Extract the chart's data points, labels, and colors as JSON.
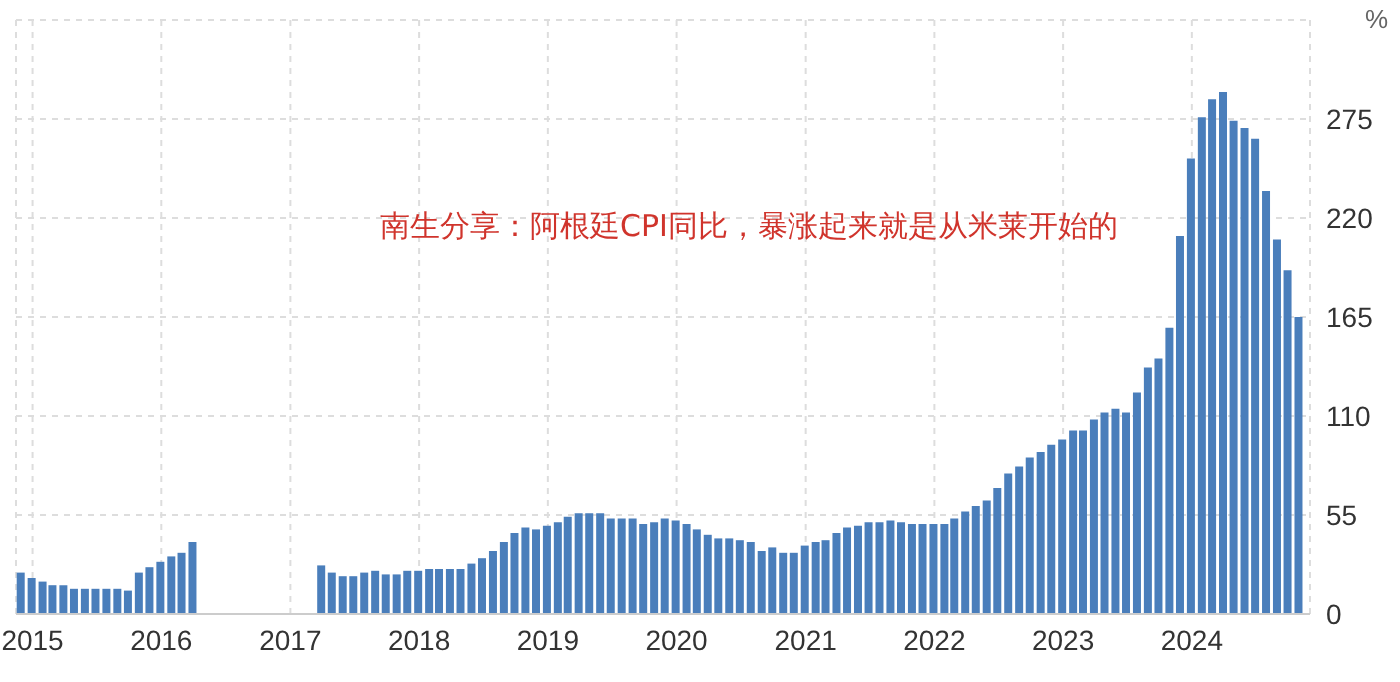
{
  "chart_data": {
    "type": "bar",
    "ylabel": "%",
    "annotations": [
      "南生分享：阿根廷CPI同比，暴涨起来就是从米莱开始的"
    ],
    "x": [
      "2014-12",
      "2015-01",
      "2015-02",
      "2015-03",
      "2015-04",
      "2015-05",
      "2015-06",
      "2015-07",
      "2015-08",
      "2015-09",
      "2015-10",
      "2015-11",
      "2015-12",
      "2016-01",
      "2016-02",
      "2016-03",
      "2016-04",
      "2016-05",
      "2016-06",
      "2016-07",
      "2016-08",
      "2016-09",
      "2016-10",
      "2016-11",
      "2016-12",
      "2017-01",
      "2017-02",
      "2017-03",
      "2017-04",
      "2017-05",
      "2017-06",
      "2017-07",
      "2017-08",
      "2017-09",
      "2017-10",
      "2017-11",
      "2017-12",
      "2018-01",
      "2018-02",
      "2018-03",
      "2018-04",
      "2018-05",
      "2018-06",
      "2018-07",
      "2018-08",
      "2018-09",
      "2018-10",
      "2018-11",
      "2018-12",
      "2019-01",
      "2019-02",
      "2019-03",
      "2019-04",
      "2019-05",
      "2019-06",
      "2019-07",
      "2019-08",
      "2019-09",
      "2019-10",
      "2019-11",
      "2019-12",
      "2020-01",
      "2020-02",
      "2020-03",
      "2020-04",
      "2020-05",
      "2020-06",
      "2020-07",
      "2020-08",
      "2020-09",
      "2020-10",
      "2020-11",
      "2020-12",
      "2021-01",
      "2021-02",
      "2021-03",
      "2021-04",
      "2021-05",
      "2021-06",
      "2021-07",
      "2021-08",
      "2021-09",
      "2021-10",
      "2021-11",
      "2021-12",
      "2022-01",
      "2022-02",
      "2022-03",
      "2022-04",
      "2022-05",
      "2022-06",
      "2022-07",
      "2022-08",
      "2022-09",
      "2022-10",
      "2022-11",
      "2022-12",
      "2023-01",
      "2023-02",
      "2023-03",
      "2023-04",
      "2023-05",
      "2023-06",
      "2023-07",
      "2023-08",
      "2023-09",
      "2023-10",
      "2023-11",
      "2023-12",
      "2024-01",
      "2024-02",
      "2024-03",
      "2024-04",
      "2024-05",
      "2024-06",
      "2024-07",
      "2024-08",
      "2024-09",
      "2024-10",
      "2024-11"
    ],
    "values": [
      23,
      20,
      18,
      16,
      16,
      14,
      14,
      14,
      14,
      14,
      13,
      23,
      26,
      29,
      32,
      34,
      40,
      null,
      null,
      null,
      null,
      null,
      null,
      null,
      null,
      null,
      null,
      null,
      27,
      23,
      21,
      21,
      23,
      24,
      22,
      22,
      24,
      24,
      25,
      25,
      25,
      25,
      28,
      31,
      35,
      40,
      45,
      48,
      47,
      49,
      51,
      54,
      56,
      56,
      56,
      53,
      53,
      53,
      50,
      51,
      53,
      52,
      50,
      47,
      44,
      42,
      42,
      41,
      40,
      35,
      37,
      34,
      34,
      38,
      40,
      41,
      45,
      48,
      49,
      51,
      51,
      52,
      51,
      50,
      50,
      50,
      50,
      53,
      57,
      60,
      63,
      70,
      78,
      82,
      87,
      90,
      94,
      97,
      102,
      102,
      108,
      112,
      114,
      112,
      123,
      137,
      142,
      159,
      210,
      253,
      276,
      286,
      290,
      274,
      270,
      264,
      235,
      208,
      191,
      165
    ],
    "color": "#4a7ebb",
    "xlim": [
      "2014-11-15",
      "2024-12-01"
    ],
    "xticks": [
      "2015",
      "2016",
      "2017",
      "2018",
      "2019",
      "2020",
      "2021",
      "2022",
      "2023",
      "2024"
    ],
    "ylim": [
      0,
      330
    ],
    "yticks": [
      0,
      55,
      110,
      165,
      220,
      275
    ],
    "grid": true
  }
}
